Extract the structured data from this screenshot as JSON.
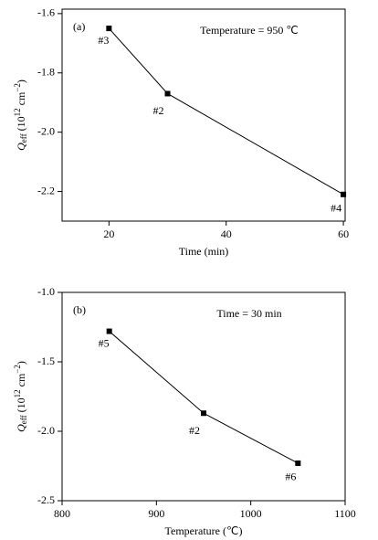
{
  "chart_data": [
    {
      "type": "line",
      "panel_label": "(a)",
      "annotation": "Temperature = 950 ℃",
      "xlabel": "Time (min)",
      "ylabel": [
        "Q",
        "eff",
        " (10",
        "12",
        " cm",
        "−2",
        ")"
      ],
      "x": [
        20,
        30,
        60
      ],
      "values": [
        -1.65,
        -1.87,
        -2.21
      ],
      "point_labels": [
        "#3",
        "#2",
        "#4"
      ],
      "color": "#000000",
      "xlim": [
        12,
        60.3
      ],
      "xticks": [
        20,
        40,
        60
      ],
      "ylim": [
        -2.3,
        -1.585
      ],
      "yticks": [
        {
          "value": -1.6,
          "label": "-1.6"
        },
        {
          "value": -1.8,
          "label": "-1.8"
        },
        {
          "value": -2.0,
          "label": "-2.0"
        },
        {
          "value": -2.2,
          "label": "-2.2"
        }
      ]
    },
    {
      "type": "line",
      "panel_label": "(b)",
      "annotation": "Time = 30 min",
      "xlabel": "Temperature (℃)",
      "ylabel": [
        "Q",
        "eff",
        " (10",
        "12",
        " cm",
        "−2",
        ")"
      ],
      "x": [
        850,
        950,
        1050
      ],
      "values": [
        -1.28,
        -1.87,
        -2.23
      ],
      "point_labels": [
        "#5",
        "#2",
        "#6"
      ],
      "color": "#000000",
      "xlim": [
        800,
        1100
      ],
      "xticks": [
        800,
        900,
        1000,
        1100
      ],
      "ylim": [
        -2.5,
        -1.0
      ],
      "yticks": [
        {
          "value": -1.0,
          "label": "-1.0"
        },
        {
          "value": -1.5,
          "label": "-1.5"
        },
        {
          "value": -2.0,
          "label": "-2.0"
        },
        {
          "value": -2.5,
          "label": "-2.5"
        }
      ]
    }
  ]
}
